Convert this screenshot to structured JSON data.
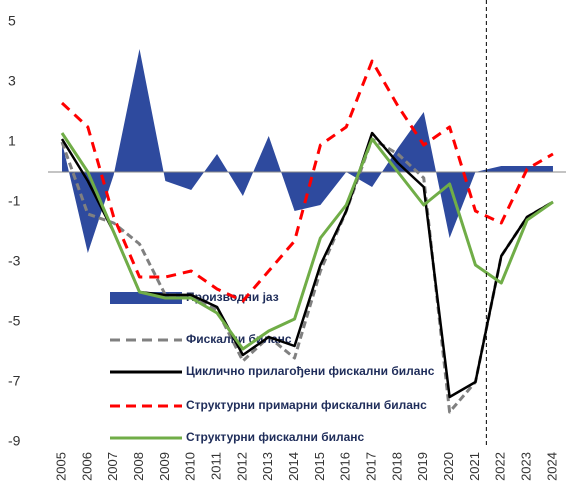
{
  "chart_data": {
    "type": "line",
    "categories": [
      "2005",
      "2006",
      "2007",
      "2008",
      "2009",
      "2010",
      "2011",
      "2012",
      "2013",
      "2014",
      "2015",
      "2016",
      "2017",
      "2018",
      "2019",
      "2020",
      "2021",
      "2022",
      "2023",
      "2024"
    ],
    "ylim": [
      -9,
      5
    ],
    "yticks": [
      -9,
      -7,
      -5,
      -3,
      -1,
      1,
      3,
      5
    ],
    "legend": "inside",
    "series": [
      {
        "name": "Производни јаз",
        "kind": "area",
        "color": "#2e4a9e",
        "values": [
          1.0,
          -2.7,
          -0.1,
          4.1,
          -0.3,
          -0.6,
          0.6,
          -0.8,
          1.2,
          -1.3,
          -1.1,
          0.0,
          -0.5,
          0.8,
          2.0,
          -2.2,
          0.0,
          0.2,
          0.2,
          0.2
        ]
      },
      {
        "name": "Фискални биланс",
        "kind": "line",
        "dash": true,
        "color": "#808080",
        "values": [
          1.0,
          -1.4,
          -1.7,
          -2.4,
          -4.1,
          -4.1,
          -4.6,
          -6.3,
          -5.5,
          -6.2,
          -3.3,
          -1.3,
          1.1,
          0.6,
          -0.2,
          -8.0,
          -7.0,
          -2.8,
          -1.5,
          -1.0
        ]
      },
      {
        "name": "Циклично прилагођени фискални биланс",
        "kind": "line",
        "dash": false,
        "color": "#000000",
        "values": [
          1.1,
          -0.3,
          -2.0,
          -4.0,
          -4.1,
          -4.1,
          -4.5,
          -6.1,
          -5.5,
          -5.8,
          -3.1,
          -1.3,
          1.3,
          0.3,
          -0.5,
          -7.5,
          -7.0,
          -2.8,
          -1.5,
          -1.0
        ]
      },
      {
        "name": "Структурни примарни фискални биланс",
        "kind": "line",
        "dash": true,
        "color": "#ff0000",
        "values": [
          2.3,
          1.5,
          -1.5,
          -3.5,
          -3.5,
          -3.3,
          -3.9,
          -4.3,
          -3.3,
          -2.3,
          0.9,
          1.5,
          3.7,
          2.2,
          0.9,
          1.5,
          -1.3,
          -1.7,
          0.1,
          0.6
        ]
      },
      {
        "name": "Структурни фискални биланс",
        "kind": "line",
        "dash": false,
        "color": "#70ad47",
        "values": [
          1.3,
          0.0,
          -2.0,
          -4.0,
          -4.2,
          -4.2,
          -4.7,
          -5.9,
          -5.3,
          -4.9,
          -2.2,
          -1.1,
          1.1,
          0.0,
          -1.1,
          -0.4,
          -3.1,
          -3.7,
          -1.6,
          -1.0
        ]
      }
    ]
  }
}
